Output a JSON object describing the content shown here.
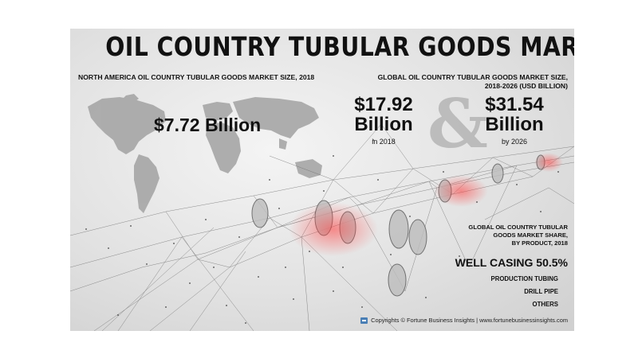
{
  "title": "OIL COUNTRY TUBULAR GOODS MARKET",
  "north_america": {
    "heading": "NORTH AMERICA OIL COUNTRY TUBULAR GOODS MARKET SIZE, 2018",
    "value": "$7.72 Billion"
  },
  "global": {
    "heading_line1": "GLOBAL OIL COUNTRY TUBULAR GOODS MARKET SIZE,",
    "heading_line2": "2018-2026 (USD BILLION)",
    "value_2018": "$17.92",
    "unit_2018": "Billion",
    "label_2018": "in 2018",
    "ampersand": "&",
    "value_2026": "$31.54",
    "unit_2026": "Billion",
    "label_2026": "by 2026"
  },
  "share": {
    "heading_line1": "GLOBAL OIL COUNTRY TUBULAR",
    "heading_line2": "GOODS MARKET SHARE,",
    "heading_line3": "BY PRODUCT, 2018",
    "leader": "WELL CASING 50.5%",
    "items": [
      "PRODUCTION TUBING",
      "DRILL PIPE",
      "OTHERS"
    ]
  },
  "copyright": "Copyrights © Fortune Business Insights | www.fortunebusinessinsights.com",
  "colors": {
    "accent_red": "#e03a3a",
    "text": "#111111",
    "map_grey": "#9c9c9c"
  },
  "icons": {
    "logo": "fortune-logo-icon"
  }
}
